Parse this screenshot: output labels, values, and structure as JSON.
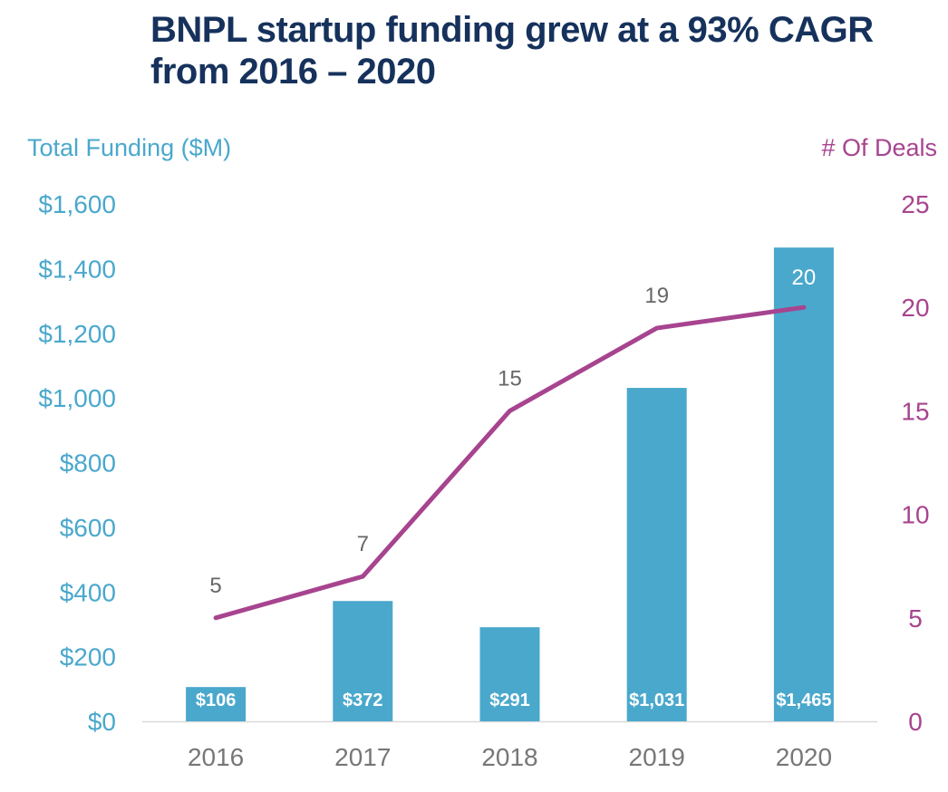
{
  "title_lines": [
    "BNPL startup funding grew at a 93% CAGR",
    "from 2016 – 2020"
  ],
  "colors": {
    "title": "#16325c",
    "bar": "#4aa8cc",
    "line": "#a7448f",
    "left_axis_text": "#4aa8cc",
    "right_axis_text": "#a7448f",
    "category_text": "#777777",
    "line_label_text": "#666666",
    "bar_label_text": "#ffffff"
  },
  "chart_data": {
    "type": "bar",
    "title": "BNPL startup funding grew at a 93% CAGR from 2016 – 2020",
    "categories": [
      "2016",
      "2017",
      "2018",
      "2019",
      "2020"
    ],
    "series": [
      {
        "name": "Total Funding ($M)",
        "type": "bar",
        "axis": "left",
        "values": [
          106,
          372,
          291,
          1031,
          1465
        ],
        "labels": [
          "$106",
          "$372",
          "$291",
          "$1,031",
          "$1,465"
        ]
      },
      {
        "name": "# Of Deals",
        "type": "line",
        "axis": "right",
        "values": [
          5,
          7,
          15,
          19,
          20
        ],
        "labels": [
          "5",
          "7",
          "15",
          "19",
          "20"
        ]
      }
    ],
    "ylabel": "Total Funding ($M)",
    "ylim": [
      0,
      1600
    ],
    "yticks": [
      0,
      200,
      400,
      600,
      800,
      1000,
      1200,
      1400,
      1600
    ],
    "ytick_labels": [
      "$0",
      "$200",
      "$400",
      "$600",
      "$800",
      "$1,000",
      "$1,200",
      "$1,400",
      "$1,600"
    ],
    "y2label": "# Of Deals",
    "y2lim": [
      0,
      25
    ],
    "y2ticks": [
      0,
      5,
      10,
      15,
      20,
      25
    ],
    "y2tick_labels": [
      "0",
      "5",
      "10",
      "15",
      "20",
      "25"
    ],
    "grid": false,
    "legend": "none"
  }
}
